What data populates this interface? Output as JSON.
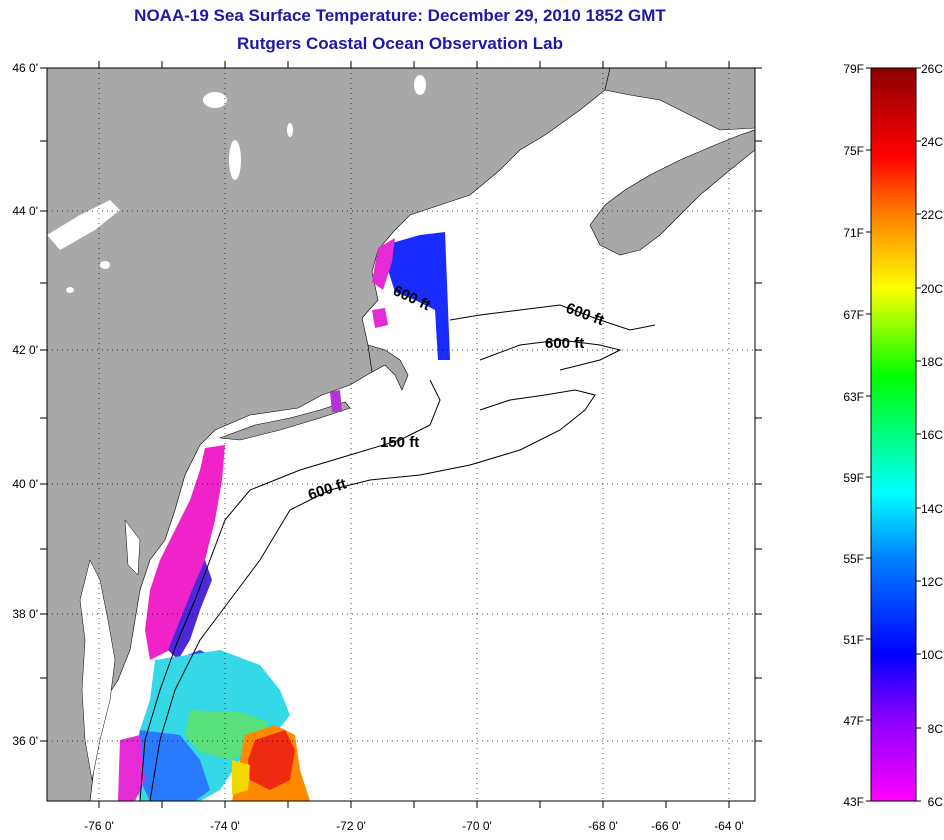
{
  "title_line1": "NOAA-19 Sea Surface Temperature:  December 29, 2010 1852 GMT",
  "title_line2": "Rutgers Coastal Ocean Observation Lab",
  "map": {
    "lat_labels": [
      "46 0'",
      "44 0'",
      "42 0'",
      "40 0'",
      "38 0'",
      "36 0'"
    ],
    "lon_labels": [
      "-76 0'",
      "-74 0'",
      "-72 0'",
      "-70 0'",
      "-68 0'",
      "-66 0'",
      "-64 0'"
    ],
    "contour_labels": [
      "600 ft",
      "600 ft",
      "600 ft",
      "150 ft",
      "600 ft"
    ]
  },
  "colorbar": {
    "fahrenheit": [
      "79F",
      "75F",
      "71F",
      "67F",
      "63F",
      "59F",
      "55F",
      "51F",
      "47F",
      "43F"
    ],
    "celsius": [
      "26C",
      "24C",
      "22C",
      "20C",
      "18C",
      "16C",
      "14C",
      "12C",
      "10C",
      "8C",
      "6C"
    ],
    "colors": [
      "#8b0000",
      "#ff0000",
      "#ff8000",
      "#ffff00",
      "#00ff00",
      "#00ffff",
      "#0000ff",
      "#7f00ff",
      "#ff00ff"
    ]
  },
  "colors": {
    "title": "#1a1aa6",
    "land": "#a8a8a8",
    "ocean": "#ffffff"
  }
}
